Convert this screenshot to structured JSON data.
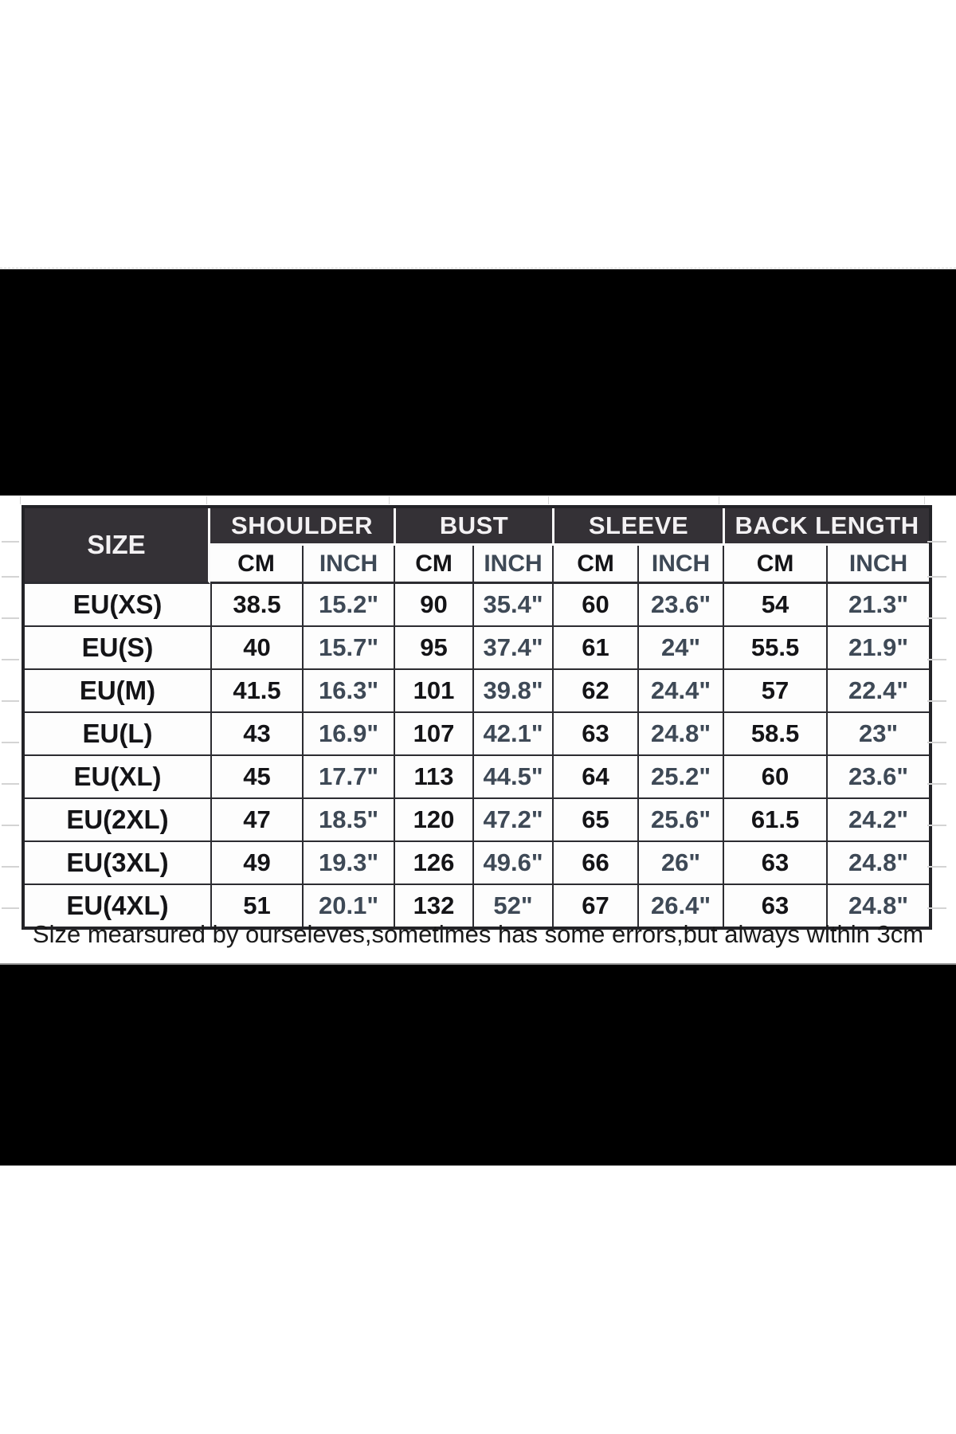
{
  "size_chart": {
    "corner_label": "SIZE",
    "groups": [
      "SHOULDER",
      "BUST",
      "SLEEVE",
      "BACK LENGTH"
    ],
    "unit_headers": [
      "CM",
      "INCH",
      "CM",
      "INCH",
      "CM",
      "INCH",
      "CM",
      "INCH"
    ],
    "rows": [
      {
        "size": "EU(XS)",
        "values": [
          "38.5",
          "15.2\"",
          "90",
          "35.4\"",
          "60",
          "23.6\"",
          "54",
          "21.3\""
        ]
      },
      {
        "size": "EU(S)",
        "values": [
          "40",
          "15.7\"",
          "95",
          "37.4\"",
          "61",
          "24\"",
          "55.5",
          "21.9\""
        ]
      },
      {
        "size": "EU(M)",
        "values": [
          "41.5",
          "16.3\"",
          "101",
          "39.8\"",
          "62",
          "24.4\"",
          "57",
          "22.4\""
        ]
      },
      {
        "size": "EU(L)",
        "values": [
          "43",
          "16.9\"",
          "107",
          "42.1\"",
          "63",
          "24.8\"",
          "58.5",
          "23\""
        ]
      },
      {
        "size": "EU(XL)",
        "values": [
          "45",
          "17.7\"",
          "113",
          "44.5\"",
          "64",
          "25.2\"",
          "60",
          "23.6\""
        ]
      },
      {
        "size": "EU(2XL)",
        "values": [
          "47",
          "18.5\"",
          "120",
          "47.2\"",
          "65",
          "25.6\"",
          "61.5",
          "24.2\""
        ]
      },
      {
        "size": "EU(3XL)",
        "values": [
          "49",
          "19.3\"",
          "126",
          "49.6\"",
          "66",
          "26\"",
          "63",
          "24.8\""
        ]
      },
      {
        "size": "EU(4XL)",
        "values": [
          "51",
          "20.1\"",
          "132",
          "52\"",
          "67",
          "26.4\"",
          "63",
          "24.8\""
        ]
      }
    ]
  },
  "note": {
    "text": "Size mearsured by ourseleves,sometimes has some errors,but always within 3cm"
  },
  "colors": {
    "header_bg": "#343136",
    "header_text": "#f3f1f3",
    "border_dark": "#2c2c31",
    "cm_text": "#141417",
    "inch_text": "#3e4956",
    "band": "#000000"
  }
}
